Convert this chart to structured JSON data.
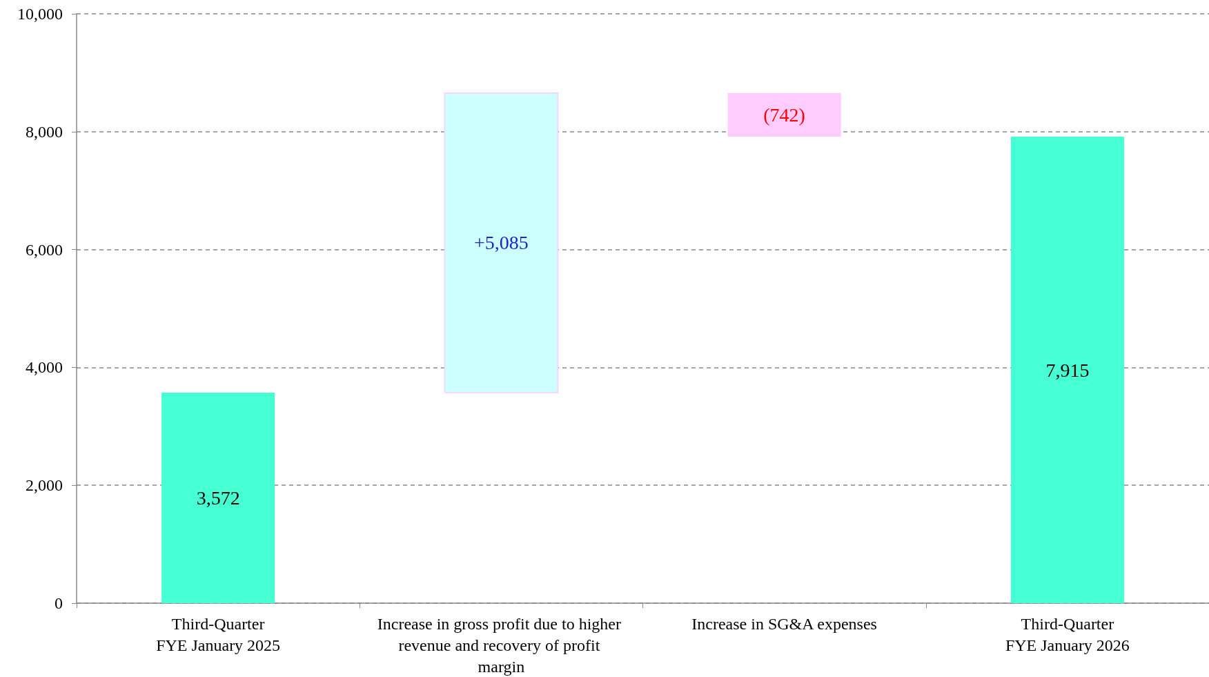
{
  "chart_data": {
    "type": "bar",
    "categories": [
      "Third-Quarter\nFYE January 2025",
      "Increase in gross profit due to higher revenue and recovery of profit margin",
      "Increase in SG&A expenses",
      "Third-Quarter\nFYE January 2026"
    ],
    "values": [
      3572,
      5085,
      -742,
      7915
    ],
    "base": [
      0,
      3572,
      8657,
      0
    ],
    "value_labels": [
      "3,572",
      "+5,085",
      "(742)",
      "7,915"
    ],
    "colors": [
      "#46ffd2",
      "#ccffff",
      "#ffccff",
      "#46ffd2"
    ],
    "ylim": [
      0,
      10000
    ],
    "yticks": [
      {
        "value": 0,
        "label": "0"
      },
      {
        "value": 2000,
        "label": "2,000"
      },
      {
        "value": 4000,
        "label": "4,000"
      },
      {
        "value": 6000,
        "label": "6,000"
      },
      {
        "value": 8000,
        "label": "8,000"
      },
      {
        "value": 10000,
        "label": "10,000"
      }
    ],
    "grid": "y"
  }
}
